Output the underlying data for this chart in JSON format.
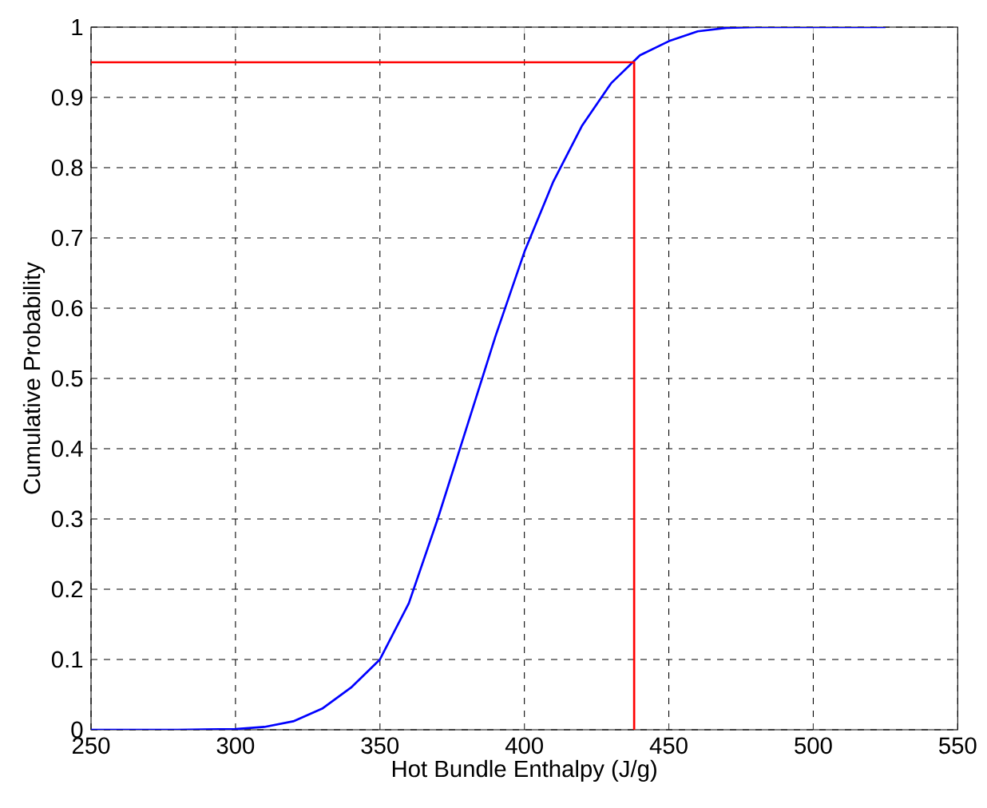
{
  "chart_data": {
    "type": "line",
    "xlabel": "Hot Bundle Enthalpy (J/g)",
    "ylabel": "Cumulative Probability",
    "xlim": [
      250,
      550
    ],
    "xticks": [
      250,
      300,
      350,
      400,
      450,
      500,
      550
    ],
    "ylim": [
      0,
      1
    ],
    "yticks": [
      0,
      0.1,
      0.2,
      0.3,
      0.4,
      0.5,
      0.6,
      0.7,
      0.8,
      0.9,
      1
    ],
    "grid": true,
    "line_style": "solid",
    "series": [
      {
        "color": "#0000ff",
        "x": [
          250,
          280,
          300,
          310,
          320,
          330,
          340,
          350,
          360,
          370,
          380,
          390,
          400,
          410,
          420,
          430,
          440,
          450,
          460,
          470,
          480,
          500,
          525
        ],
        "values": [
          0,
          0,
          0.001,
          0.004,
          0.012,
          0.03,
          0.06,
          0.1,
          0.18,
          0.3,
          0.43,
          0.56,
          0.68,
          0.78,
          0.86,
          0.92,
          0.96,
          0.98,
          0.994,
          0.999,
          1,
          1,
          1
        ]
      },
      {
        "color": "#ff0000",
        "x": [
          250,
          438,
          438
        ],
        "values": [
          0.95,
          0.95,
          0
        ]
      }
    ]
  }
}
